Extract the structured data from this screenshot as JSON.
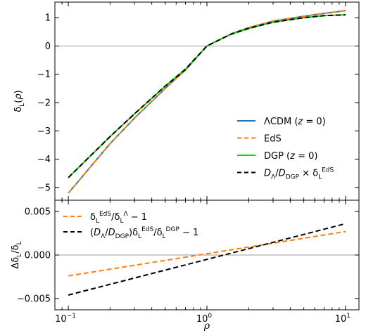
{
  "chart_data": [
    {
      "type": "line",
      "ylabel": "δL(ρ)",
      "xscale": "log",
      "xlim": [
        0.08,
        12.5
      ],
      "ylim": [
        -5.45,
        1.55
      ],
      "x_ticks": [
        0.1,
        1,
        10
      ],
      "y_ticks": [
        -5,
        -4,
        -3,
        -2,
        -1,
        0,
        1
      ],
      "y_tick_labels": [
        "−5",
        "−4",
        "−3",
        "−2",
        "−1",
        "0",
        "1"
      ],
      "legend_position": "lower-right",
      "horizontal_line": 0,
      "series": [
        {
          "name": "ΛCDM (z = 0)",
          "color": "#1f77b4",
          "style": "solid",
          "x": [
            0.1,
            0.2,
            0.3,
            0.5,
            0.7,
            1,
            1.5,
            2,
            3,
            5,
            7,
            10
          ],
          "y": [
            -5.2,
            -3.45,
            -2.55,
            -1.5,
            -0.85,
            0.0,
            0.43,
            0.65,
            0.88,
            1.05,
            1.15,
            1.25
          ]
        },
        {
          "name": "EdS",
          "color": "#ff7f0e",
          "style": "dashed",
          "x": [
            0.1,
            0.2,
            0.3,
            0.5,
            0.7,
            1,
            1.5,
            2,
            3,
            5,
            7,
            10
          ],
          "y": [
            -5.2,
            -3.45,
            -2.55,
            -1.5,
            -0.85,
            0.0,
            0.43,
            0.65,
            0.88,
            1.05,
            1.15,
            1.25
          ]
        },
        {
          "name": "DGP (z = 0)",
          "color": "#00dd00",
          "style": "solid",
          "x": [
            0.1,
            0.2,
            0.3,
            0.5,
            0.7,
            1,
            1.5,
            2,
            3,
            5,
            7,
            10
          ],
          "y": [
            -4.65,
            -3.2,
            -2.4,
            -1.42,
            -0.82,
            0.0,
            0.42,
            0.62,
            0.84,
            1.0,
            1.07,
            1.1
          ]
        },
        {
          "name": "DΛ/DDGP × δL^EdS",
          "color": "#000000",
          "style": "dashed",
          "x": [
            0.1,
            0.2,
            0.3,
            0.5,
            0.7,
            1,
            1.5,
            2,
            3,
            5,
            7,
            10
          ],
          "y": [
            -4.65,
            -3.2,
            -2.4,
            -1.42,
            -0.82,
            0.0,
            0.42,
            0.62,
            0.84,
            1.0,
            1.07,
            1.1
          ]
        }
      ],
      "legend": [
        {
          "parts": [
            {
              "t": "ΛCDM ("
            },
            {
              "t": "z",
              "i": true
            },
            {
              "t": " = 0)"
            }
          ]
        },
        {
          "parts": [
            {
              "t": "EdS"
            }
          ]
        },
        {
          "parts": [
            {
              "t": "DGP ("
            },
            {
              "t": "z",
              "i": true
            },
            {
              "t": " = 0)"
            }
          ]
        },
        {
          "parts": [
            {
              "t": "D",
              "i": true
            },
            {
              "t": "Λ",
              "s": "sub"
            },
            {
              "t": "/"
            },
            {
              "t": "D",
              "i": true
            },
            {
              "t": "DGP",
              "s": "sub"
            },
            {
              "t": " × δ"
            },
            {
              "t": "L",
              "s": "sub"
            },
            {
              "t": "EdS",
              "s": "sup"
            }
          ]
        }
      ]
    },
    {
      "type": "line",
      "xlabel": "ρ",
      "ylabel": "ΔδL/δL",
      "xscale": "log",
      "xlim": [
        0.08,
        12.5
      ],
      "ylim": [
        -0.0063,
        0.0063
      ],
      "x_ticks": [
        0.1,
        1,
        10
      ],
      "x_tick_labels": [
        "10^-1",
        "10^0",
        "10^1"
      ],
      "y_ticks": [
        -0.005,
        0.0,
        0.005
      ],
      "y_tick_labels": [
        "−0.005",
        "0.000",
        "0.005"
      ],
      "legend_position": "upper-left",
      "horizontal_line": 0,
      "series": [
        {
          "name": "δL^EdS/δL^Λ − 1",
          "color": "#ff7f0e",
          "style": "dashed",
          "x": [
            0.1,
            10
          ],
          "y": [
            -0.0024,
            0.0027
          ]
        },
        {
          "name": "(DΛ/DDGP)δL^EdS/δL^DGP − 1",
          "color": "#000000",
          "style": "dashed",
          "x": [
            0.1,
            10
          ],
          "y": [
            -0.0046,
            0.0036
          ]
        }
      ],
      "legend": [
        {
          "parts": [
            {
              "t": "δ"
            },
            {
              "t": "L",
              "s": "sub"
            },
            {
              "t": "EdS",
              "s": "sup"
            },
            {
              "t": "/δ"
            },
            {
              "t": "L",
              "s": "sub"
            },
            {
              "t": "Λ",
              "s": "sup"
            },
            {
              "t": " − 1"
            }
          ]
        },
        {
          "parts": [
            {
              "t": "("
            },
            {
              "t": "D",
              "i": true
            },
            {
              "t": "Λ",
              "s": "sub"
            },
            {
              "t": "/"
            },
            {
              "t": "D",
              "i": true
            },
            {
              "t": "DGP",
              "s": "sub"
            },
            {
              "t": ")δ"
            },
            {
              "t": "L",
              "s": "sub"
            },
            {
              "t": "EdS",
              "s": "sup"
            },
            {
              "t": "/δ"
            },
            {
              "t": "L",
              "s": "sub"
            },
            {
              "t": "DGP",
              "s": "sup"
            },
            {
              "t": " − 1"
            }
          ]
        }
      ]
    }
  ]
}
